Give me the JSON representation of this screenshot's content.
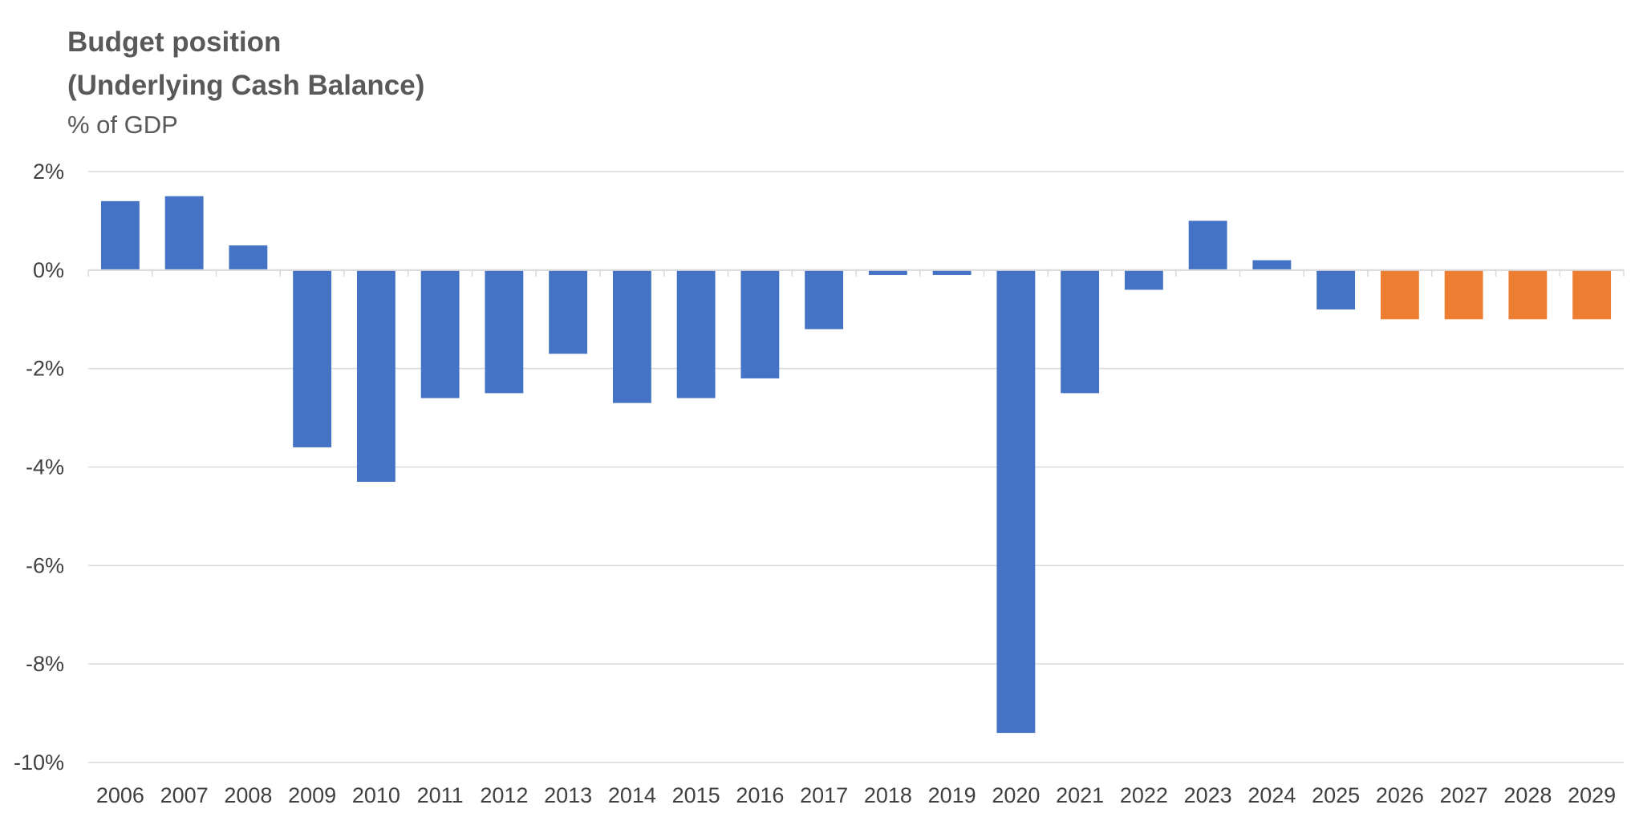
{
  "chart_data": {
    "type": "bar",
    "title": "Budget position",
    "title_line2": "(Underlying Cash Balance)",
    "subtitle": "% of GDP",
    "xlabel": "",
    "ylabel": "",
    "ylim": [
      -10,
      2
    ],
    "y_ticks": [
      2,
      0,
      -2,
      -4,
      -6,
      -8,
      -10
    ],
    "y_tick_labels": [
      "2%",
      "0%",
      "-2%",
      "-4%",
      "-6%",
      "-8%",
      "-10%"
    ],
    "grid": true,
    "legend": "none",
    "categories": [
      "2006",
      "2007",
      "2008",
      "2009",
      "2010",
      "2011",
      "2012",
      "2013",
      "2014",
      "2015",
      "2016",
      "2017",
      "2018",
      "2019",
      "2020",
      "2021",
      "2022",
      "2023",
      "2024",
      "2025",
      "2026",
      "2027",
      "2028",
      "2029"
    ],
    "values": [
      1.4,
      1.5,
      0.5,
      -3.6,
      -4.3,
      -2.6,
      -2.5,
      -1.7,
      -2.7,
      -2.6,
      -2.2,
      -1.2,
      -0.1,
      -0.1,
      -9.4,
      -2.5,
      -0.4,
      1.0,
      0.2,
      -0.8,
      -1.0,
      -1.0,
      -1.0,
      -1.0
    ],
    "bar_colors": [
      "#4472C4",
      "#4472C4",
      "#4472C4",
      "#4472C4",
      "#4472C4",
      "#4472C4",
      "#4472C4",
      "#4472C4",
      "#4472C4",
      "#4472C4",
      "#4472C4",
      "#4472C4",
      "#4472C4",
      "#4472C4",
      "#4472C4",
      "#4472C4",
      "#4472C4",
      "#4472C4",
      "#4472C4",
      "#4472C4",
      "#ED7D31",
      "#ED7D31",
      "#ED7D31",
      "#ED7D31"
    ],
    "colors": {
      "actual": "#4472C4",
      "projection": "#ED7D31",
      "grid": "#D9D9D9",
      "text": "#595959"
    }
  }
}
